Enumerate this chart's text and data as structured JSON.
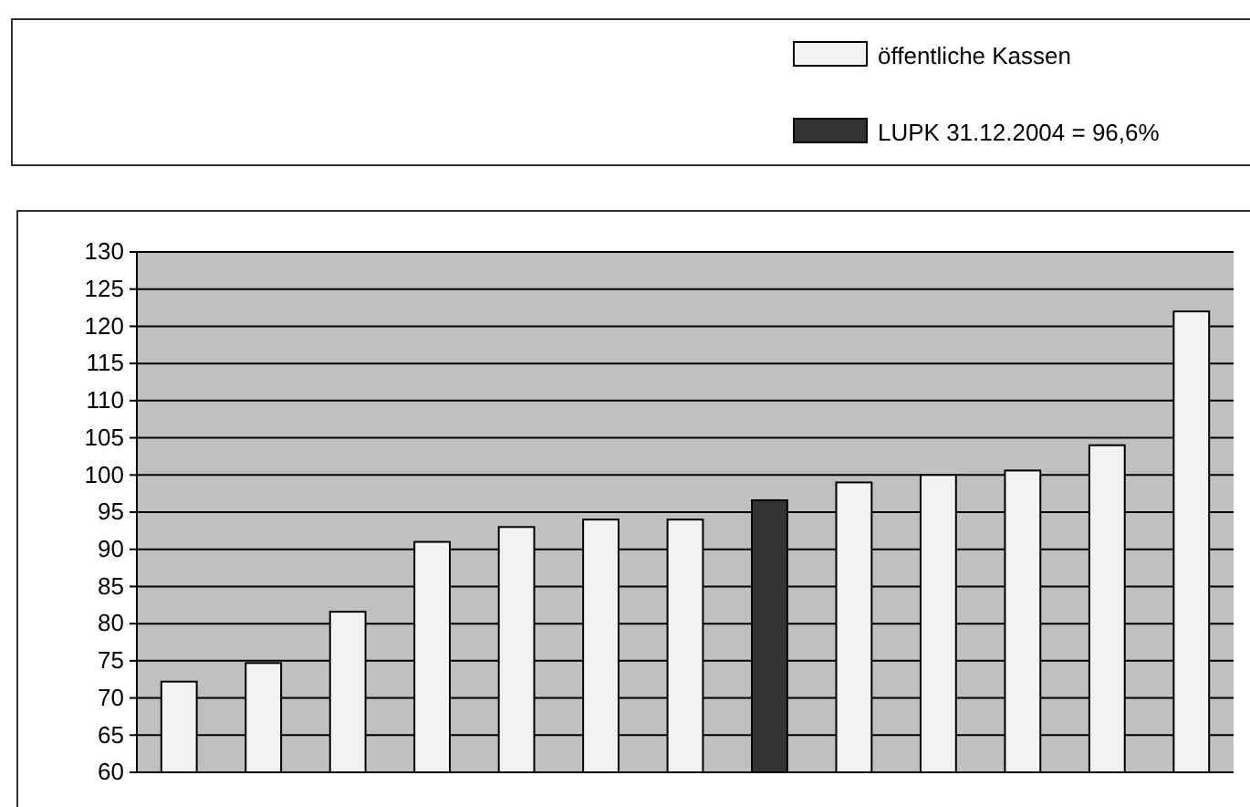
{
  "chart_data": {
    "type": "bar",
    "categories": [
      null,
      null,
      null,
      null,
      null,
      null,
      null,
      null,
      null,
      null,
      null,
      null,
      null
    ],
    "series": [
      {
        "name": "öffentliche Kassen",
        "color": "#f2f2f2",
        "values": [
          72.2,
          74.7,
          81.6,
          91,
          93,
          94,
          94,
          null,
          99,
          100,
          100.6,
          104,
          122
        ]
      },
      {
        "name": "LUPK 31.12.2004 = 96,6%",
        "color": "#333333",
        "values": [
          null,
          null,
          null,
          null,
          null,
          null,
          null,
          96.6,
          null,
          null,
          null,
          null,
          null
        ]
      }
    ],
    "ylim": [
      60,
      130
    ],
    "yticks": [
      60,
      65,
      70,
      75,
      80,
      85,
      90,
      95,
      100,
      105,
      110,
      115,
      120,
      125,
      130
    ],
    "grid": "y",
    "legend": "top right"
  }
}
